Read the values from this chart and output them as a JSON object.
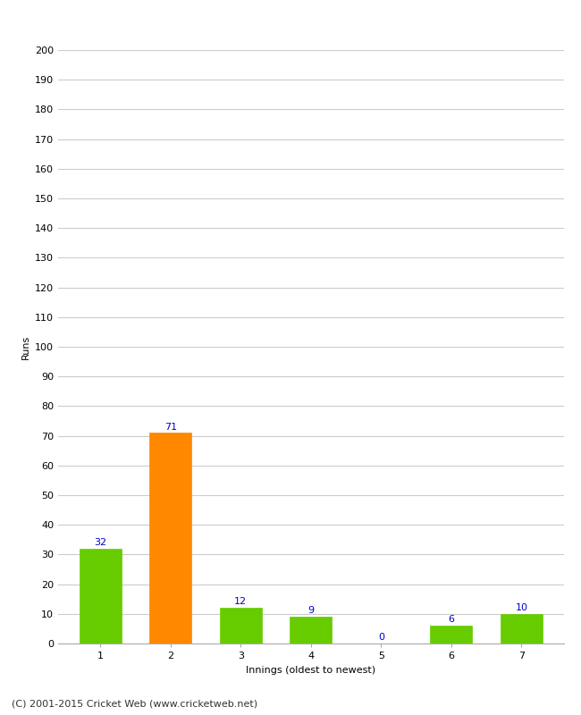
{
  "categories": [
    "1",
    "2",
    "3",
    "4",
    "5",
    "6",
    "7"
  ],
  "values": [
    32,
    71,
    12,
    9,
    0,
    6,
    10
  ],
  "bar_colors": [
    "#66cc00",
    "#ff8800",
    "#66cc00",
    "#66cc00",
    "#66cc00",
    "#66cc00",
    "#66cc00"
  ],
  "xlabel": "Innings (oldest to newest)",
  "ylabel": "Runs",
  "ylim": [
    0,
    200
  ],
  "yticks": [
    0,
    10,
    20,
    30,
    40,
    50,
    60,
    70,
    80,
    90,
    100,
    110,
    120,
    130,
    140,
    150,
    160,
    170,
    180,
    190,
    200
  ],
  "label_color": "#0000cc",
  "label_fontsize": 8,
  "axis_fontsize": 8,
  "ylabel_fontsize": 8,
  "xlabel_fontsize": 8,
  "footer": "(C) 2001-2015 Cricket Web (www.cricketweb.net)",
  "footer_fontsize": 8,
  "background_color": "#ffffff",
  "grid_color": "#cccccc",
  "bar_width": 0.6
}
